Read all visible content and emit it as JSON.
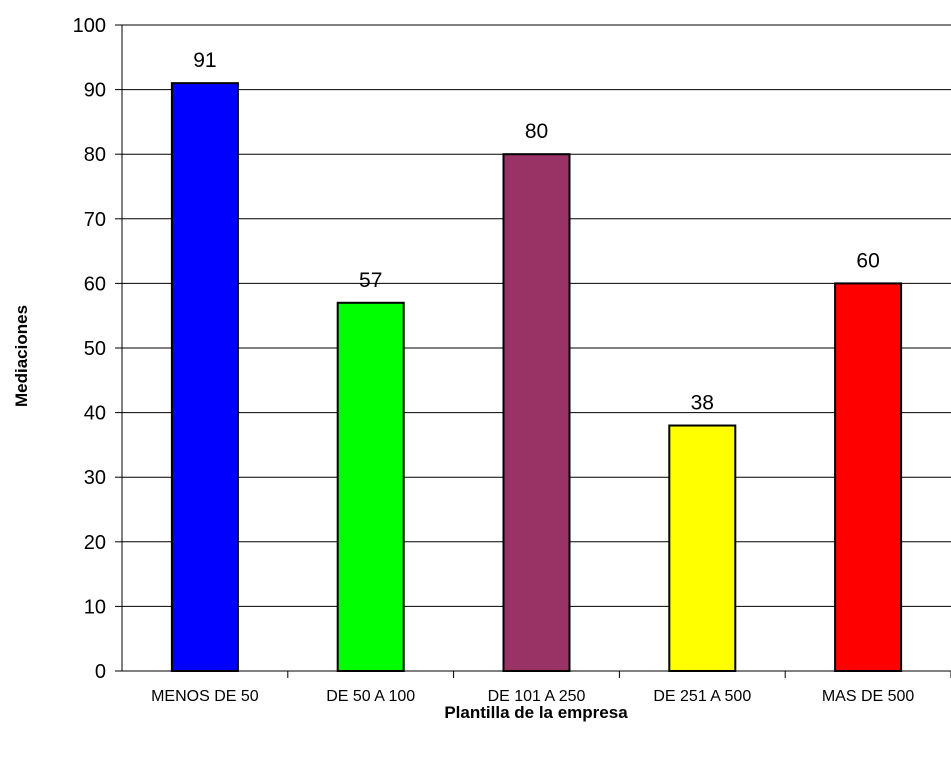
{
  "chart_data": {
    "type": "bar",
    "title": "",
    "xlabel": "Plantilla de la empresa",
    "ylabel": "Mediaciones",
    "ylim": [
      0,
      100
    ],
    "y_ticks": [
      0,
      10,
      20,
      30,
      40,
      50,
      60,
      70,
      80,
      90,
      100
    ],
    "grid": true,
    "legend": "none",
    "categories": [
      "MENOS DE 50",
      "DE 50 A 100",
      "DE 101 A 250",
      "DE 251 A 500",
      "MAS DE 500"
    ],
    "values": [
      91,
      57,
      80,
      38,
      60
    ],
    "colors": [
      "#0000ff",
      "#00ff00",
      "#993366",
      "#ffff00",
      "#ff0000"
    ]
  }
}
